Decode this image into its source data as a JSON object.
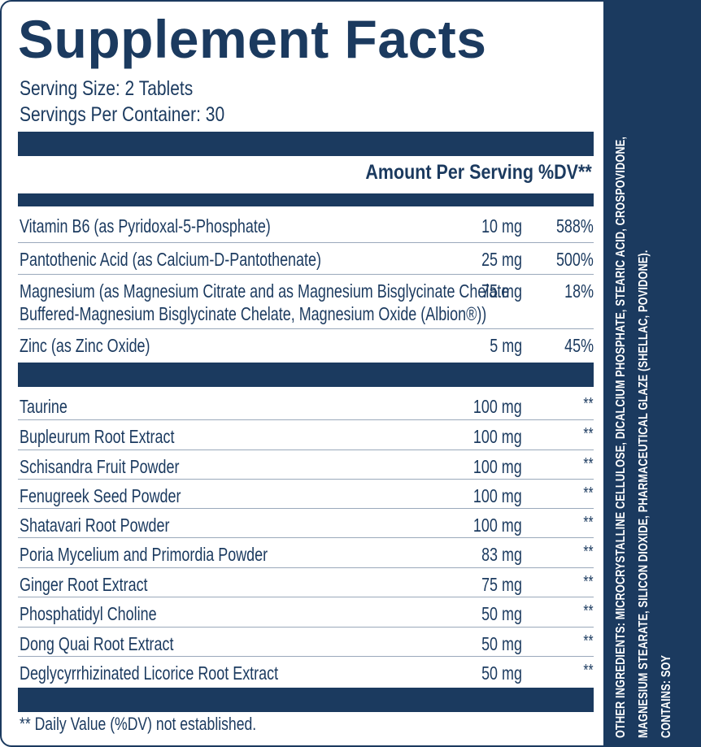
{
  "title": "Supplement Facts",
  "serving_size": "Serving Size: 2 Tablets",
  "servings_per_container": "Servings Per Container: 30",
  "amount_header": "Amount Per Serving %DV**",
  "vitamins": [
    {
      "name": "Vitamin B6 (as Pyridoxal-5-Phosphate)",
      "amount": "10 mg",
      "dv": "588%"
    },
    {
      "name": "Pantothenic Acid (as Calcium-D-Pantothenate)",
      "amount": "25 mg",
      "dv": "500%"
    },
    {
      "name": "Magnesium (as Magnesium Citrate and as Magnesium Bisglycinate Chelate",
      "name_line2": "Buffered-Magnesium Bisglycinate Chelate, Magnesium Oxide (Albion®))",
      "amount": "75 mg",
      "dv": "18%"
    },
    {
      "name": "Zinc (as Zinc Oxide)",
      "amount": "5 mg",
      "dv": "45%"
    }
  ],
  "botanicals": [
    {
      "name": "Taurine",
      "amount": "100 mg",
      "dv": "**"
    },
    {
      "name": "Bupleurum Root Extract",
      "amount": "100 mg",
      "dv": "**"
    },
    {
      "name": "Schisandra Fruit Powder",
      "amount": "100 mg",
      "dv": "**"
    },
    {
      "name": "Fenugreek Seed Powder",
      "amount": "100 mg",
      "dv": "**"
    },
    {
      "name": "Shatavari Root Powder",
      "amount": "100 mg",
      "dv": "**"
    },
    {
      "name": "Poria Mycelium and Primordia Powder",
      "amount": "83 mg",
      "dv": "**"
    },
    {
      "name": "Ginger Root Extract",
      "amount": "75 mg",
      "dv": "**"
    },
    {
      "name": "Phosphatidyl Choline",
      "amount": "50 mg",
      "dv": "**"
    },
    {
      "name": "Dong Quai Root Extract",
      "amount": "50 mg",
      "dv": "**"
    },
    {
      "name": "Deglycyrrhizinated Licorice Root Extract",
      "amount": "50 mg",
      "dv": "**"
    }
  ],
  "footnote": "** Daily Value (%DV) not established.",
  "other_ingredients": {
    "line1": "OTHER INGREDIENTS: MICROCRYSTALLINE CELLULOSE, DICALCIUM PHOSPHATE, STEARIC ACID, CROSPOVIDONE,",
    "line2": "MAGNESIUM STEARATE, SILICON DIOXIDE, PHARMACEUTICAL GLAZE (SHELLAC, POVIDONE).",
    "contains": "CONTAINS: SOY"
  },
  "colors": {
    "navy": "#1b3a5f",
    "white": "#ffffff"
  }
}
